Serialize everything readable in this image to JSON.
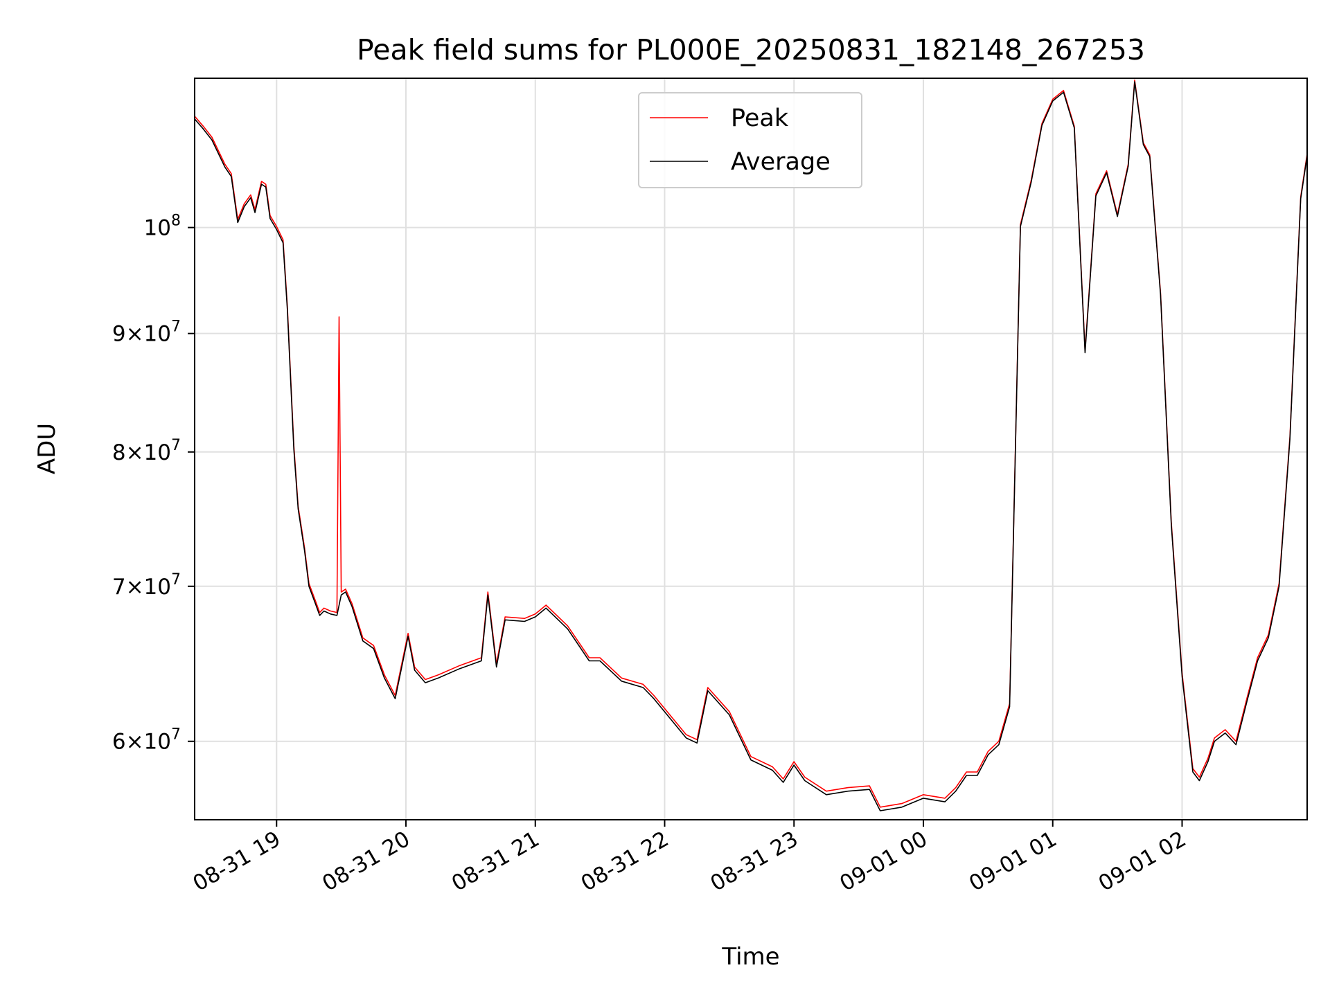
{
  "chart_data": {
    "type": "line",
    "title": "Peak field sums for PL000E_20250831_182148_267253",
    "xlabel": "Time",
    "ylabel": "ADU",
    "y_scale": "log",
    "grid": true,
    "legend_position": "top-center",
    "xlim": [
      "2025-08-31 18:22",
      "2025-09-01 02:58"
    ],
    "ylim": [
      55500000,
      116000000
    ],
    "x_ticks": [
      {
        "x": "2025-08-31 19:00",
        "label": "08-31 19"
      },
      {
        "x": "2025-08-31 20:00",
        "label": "08-31 20"
      },
      {
        "x": "2025-08-31 21:00",
        "label": "08-31 21"
      },
      {
        "x": "2025-08-31 22:00",
        "label": "08-31 22"
      },
      {
        "x": "2025-08-31 23:00",
        "label": "08-31 23"
      },
      {
        "x": "2025-09-01 00:00",
        "label": "09-01 00"
      },
      {
        "x": "2025-09-01 01:00",
        "label": "09-01 01"
      },
      {
        "x": "2025-09-01 02:00",
        "label": "09-01 02"
      }
    ],
    "y_ticks": [
      {
        "y": 60000000,
        "mant": "6",
        "exp": "7"
      },
      {
        "y": 70000000,
        "mant": "7",
        "exp": "7"
      },
      {
        "y": 80000000,
        "mant": "8",
        "exp": "7"
      },
      {
        "y": 90000000,
        "mant": "9",
        "exp": "7"
      },
      {
        "y": 100000000,
        "mant": "",
        "exp": "8"
      }
    ],
    "series": [
      {
        "name": "Peak",
        "color": "#ff0000",
        "x": [
          "2025-08-31 18:22",
          "2025-08-31 18:26",
          "2025-08-31 18:30",
          "2025-08-31 18:36",
          "2025-08-31 18:39",
          "2025-08-31 18:42",
          "2025-08-31 18:45",
          "2025-08-31 18:48",
          "2025-08-31 18:50",
          "2025-08-31 18:53",
          "2025-08-31 18:55",
          "2025-08-31 18:57",
          "2025-08-31 19:00",
          "2025-08-31 19:03",
          "2025-08-31 19:05",
          "2025-08-31 19:08",
          "2025-08-31 19:10",
          "2025-08-31 19:13",
          "2025-08-31 19:15",
          "2025-08-31 19:18",
          "2025-08-31 19:20",
          "2025-08-31 19:22",
          "2025-08-31 19:25",
          "2025-08-31 19:28",
          "2025-08-31 19:29",
          "2025-08-31 19:30",
          "2025-08-31 19:32",
          "2025-08-31 19:35",
          "2025-08-31 19:40",
          "2025-08-31 19:45",
          "2025-08-31 19:50",
          "2025-08-31 19:55",
          "2025-08-31 20:01",
          "2025-08-31 20:04",
          "2025-08-31 20:09",
          "2025-08-31 20:15",
          "2025-08-31 20:25",
          "2025-08-31 20:35",
          "2025-08-31 20:38",
          "2025-08-31 20:42",
          "2025-08-31 20:46",
          "2025-08-31 20:55",
          "2025-08-31 21:00",
          "2025-08-31 21:05",
          "2025-08-31 21:15",
          "2025-08-31 21:25",
          "2025-08-31 21:30",
          "2025-08-31 21:40",
          "2025-08-31 21:50",
          "2025-08-31 21:55",
          "2025-08-31 22:10",
          "2025-08-31 22:15",
          "2025-08-31 22:20",
          "2025-08-31 22:30",
          "2025-08-31 22:40",
          "2025-08-31 22:50",
          "2025-08-31 22:55",
          "2025-08-31 23:00",
          "2025-08-31 23:05",
          "2025-08-31 23:15",
          "2025-08-31 23:25",
          "2025-08-31 23:35",
          "2025-08-31 23:40",
          "2025-08-31 23:50",
          "2025-09-01 00:00",
          "2025-09-01 00:10",
          "2025-09-01 00:15",
          "2025-09-01 00:20",
          "2025-09-01 00:25",
          "2025-09-01 00:30",
          "2025-09-01 00:35",
          "2025-09-01 00:40",
          "2025-09-01 00:45",
          "2025-09-01 00:50",
          "2025-09-01 00:55",
          "2025-09-01 01:00",
          "2025-09-01 01:05",
          "2025-09-01 01:10",
          "2025-09-01 01:15",
          "2025-09-01 01:20",
          "2025-09-01 01:25",
          "2025-09-01 01:30",
          "2025-09-01 01:35",
          "2025-09-01 01:38",
          "2025-09-01 01:42",
          "2025-09-01 01:45",
          "2025-09-01 01:50",
          "2025-09-01 01:55",
          "2025-09-01 02:00",
          "2025-09-01 02:05",
          "2025-09-01 02:08",
          "2025-09-01 02:12",
          "2025-09-01 02:15",
          "2025-09-01 02:20",
          "2025-09-01 02:25",
          "2025-09-01 02:30",
          "2025-09-01 02:35",
          "2025-09-01 02:40",
          "2025-09-01 02:45",
          "2025-09-01 02:50",
          "2025-09-01 02:55",
          "2025-09-01 02:58"
        ],
        "y": [
          111700000,
          110600000,
          109400000,
          106500000,
          105500000,
          100800000,
          102400000,
          103300000,
          101800000,
          104700000,
          104400000,
          101200000,
          100100000,
          98800000,
          92500000,
          80500000,
          75800000,
          72700000,
          70200000,
          69000000,
          68200000,
          68500000,
          68300000,
          68200000,
          91500000,
          69600000,
          69800000,
          68800000,
          66500000,
          66000000,
          64100000,
          62800000,
          66800000,
          64600000,
          63800000,
          64100000,
          64700000,
          65200000,
          69600000,
          64800000,
          67900000,
          67800000,
          68100000,
          68700000,
          67300000,
          65200000,
          65200000,
          63900000,
          63500000,
          62800000,
          60400000,
          60100000,
          63300000,
          61800000,
          59100000,
          58500000,
          57800000,
          58800000,
          57900000,
          57100000,
          57300000,
          57400000,
          56200000,
          56400000,
          56900000,
          56700000,
          57300000,
          58200000,
          58200000,
          59400000,
          60000000,
          62300000,
          100300000,
          104800000,
          110900000,
          113600000,
          114600000,
          110600000,
          88500000,
          103400000,
          105800000,
          101300000,
          106500000,
          115800000,
          108800000,
          107500000,
          93700000,
          74600000,
          64200000,
          58400000,
          57900000,
          59000000,
          60200000,
          60700000,
          60000000,
          62600000,
          65200000,
          66700000,
          70200000,
          81200000,
          103100000,
          107600000
        ]
      },
      {
        "name": "Average",
        "color": "#000000",
        "x": [
          "2025-08-31 18:22",
          "2025-08-31 18:26",
          "2025-08-31 18:30",
          "2025-08-31 18:36",
          "2025-08-31 18:39",
          "2025-08-31 18:42",
          "2025-08-31 18:45",
          "2025-08-31 18:48",
          "2025-08-31 18:50",
          "2025-08-31 18:53",
          "2025-08-31 18:55",
          "2025-08-31 18:57",
          "2025-08-31 19:00",
          "2025-08-31 19:03",
          "2025-08-31 19:05",
          "2025-08-31 19:08",
          "2025-08-31 19:10",
          "2025-08-31 19:13",
          "2025-08-31 19:15",
          "2025-08-31 19:18",
          "2025-08-31 19:20",
          "2025-08-31 19:22",
          "2025-08-31 19:25",
          "2025-08-31 19:28",
          "2025-08-31 19:30",
          "2025-08-31 19:32",
          "2025-08-31 19:35",
          "2025-08-31 19:40",
          "2025-08-31 19:45",
          "2025-08-31 19:50",
          "2025-08-31 19:55",
          "2025-08-31 20:01",
          "2025-08-31 20:04",
          "2025-08-31 20:09",
          "2025-08-31 20:15",
          "2025-08-31 20:25",
          "2025-08-31 20:35",
          "2025-08-31 20:38",
          "2025-08-31 20:42",
          "2025-08-31 20:46",
          "2025-08-31 20:55",
          "2025-08-31 21:00",
          "2025-08-31 21:05",
          "2025-08-31 21:15",
          "2025-08-31 21:25",
          "2025-08-31 21:30",
          "2025-08-31 21:40",
          "2025-08-31 21:50",
          "2025-08-31 21:55",
          "2025-08-31 22:10",
          "2025-08-31 22:15",
          "2025-08-31 22:20",
          "2025-08-31 22:30",
          "2025-08-31 22:40",
          "2025-08-31 22:50",
          "2025-08-31 22:55",
          "2025-08-31 23:00",
          "2025-08-31 23:05",
          "2025-08-31 23:15",
          "2025-08-31 23:25",
          "2025-08-31 23:35",
          "2025-08-31 23:40",
          "2025-08-31 23:50",
          "2025-09-01 00:00",
          "2025-09-01 00:10",
          "2025-09-01 00:15",
          "2025-09-01 00:20",
          "2025-09-01 00:25",
          "2025-09-01 00:30",
          "2025-09-01 00:35",
          "2025-09-01 00:40",
          "2025-09-01 00:45",
          "2025-09-01 00:50",
          "2025-09-01 00:55",
          "2025-09-01 01:00",
          "2025-09-01 01:05",
          "2025-09-01 01:10",
          "2025-09-01 01:15",
          "2025-09-01 01:20",
          "2025-09-01 01:25",
          "2025-09-01 01:30",
          "2025-09-01 01:35",
          "2025-09-01 01:38",
          "2025-09-01 01:42",
          "2025-09-01 01:45",
          "2025-09-01 01:50",
          "2025-09-01 01:55",
          "2025-09-01 02:00",
          "2025-09-01 02:05",
          "2025-09-01 02:08",
          "2025-09-01 02:12",
          "2025-09-01 02:15",
          "2025-09-01 02:20",
          "2025-09-01 02:25",
          "2025-09-01 02:30",
          "2025-09-01 02:35",
          "2025-09-01 02:40",
          "2025-09-01 02:45",
          "2025-09-01 02:50",
          "2025-09-01 02:55",
          "2025-09-01 02:58"
        ],
        "y": [
          111400000,
          110300000,
          109100000,
          106200000,
          105200000,
          100500000,
          102100000,
          103000000,
          101500000,
          104400000,
          104100000,
          100900000,
          99800000,
          98500000,
          92200000,
          80200000,
          75600000,
          72500000,
          70000000,
          68800000,
          68000000,
          68300000,
          68100000,
          68000000,
          69400000,
          69600000,
          68600000,
          66300000,
          65800000,
          63900000,
          62600000,
          66600000,
          64400000,
          63600000,
          63900000,
          64500000,
          65000000,
          69400000,
          64600000,
          67700000,
          67600000,
          67900000,
          68500000,
          67100000,
          65000000,
          65000000,
          63700000,
          63300000,
          62600000,
          60200000,
          59900000,
          63100000,
          61600000,
          58900000,
          58300000,
          57600000,
          58600000,
          57700000,
          56900000,
          57100000,
          57200000,
          56000000,
          56200000,
          56700000,
          56500000,
          57100000,
          58000000,
          58000000,
          59200000,
          59800000,
          62100000,
          100100000,
          104600000,
          110700000,
          113400000,
          114400000,
          110400000,
          88300000,
          103200000,
          105600000,
          101100000,
          106300000,
          115600000,
          108600000,
          107300000,
          93500000,
          74400000,
          64000000,
          58200000,
          57700000,
          58800000,
          60000000,
          60500000,
          59800000,
          62400000,
          65000000,
          66500000,
          70000000,
          81000000,
          102900000,
          107400000
        ]
      }
    ]
  }
}
